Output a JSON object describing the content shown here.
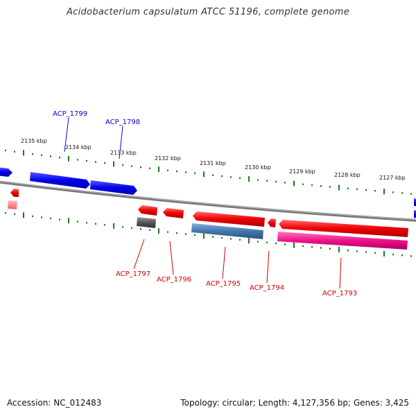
{
  "title": "Acidobacterium capsulatum ATCC 51196, complete genome",
  "footer": {
    "accession": "Accession: NC_012483",
    "topology": "Topology: circular; Length: 4,127,356 bp; Genes: 3,425"
  },
  "colors": {
    "forward_gene": "#0000ee",
    "reverse_gene": "#ee0000",
    "gray_gene": "#555555",
    "steelblue_gene": "#4477aa",
    "pink_gene": "#ee1188",
    "tick": "#1a7a1a",
    "backbone": "#888888"
  },
  "scale_ticks": [
    "2135 kbp",
    "2134 kbp",
    "2133 kbp",
    "2132 kbp",
    "2131 kbp",
    "2130 kbp",
    "2129 kbp",
    "2128 kbp",
    "2127 kbp"
  ],
  "genes_top": [
    "ACP_1799",
    "ACP_1798"
  ],
  "genes_bottom": [
    "ACP_1797",
    "ACP_1796",
    "ACP_1795",
    "ACP_1794",
    "ACP_1793"
  ]
}
